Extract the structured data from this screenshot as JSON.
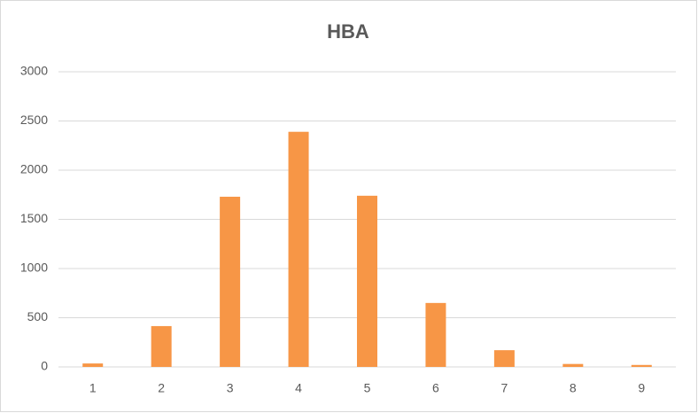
{
  "chart_data": {
    "type": "bar",
    "title": "HBA",
    "categories": [
      "1",
      "2",
      "3",
      "4",
      "5",
      "6",
      "7",
      "8",
      "9"
    ],
    "values": [
      35,
      415,
      1730,
      2390,
      1740,
      650,
      170,
      30,
      20
    ],
    "color": "#f79646",
    "ylim": [
      0,
      3000
    ],
    "yticks": [
      0,
      500,
      1000,
      1500,
      2000,
      2500,
      3000
    ],
    "grid": true
  }
}
